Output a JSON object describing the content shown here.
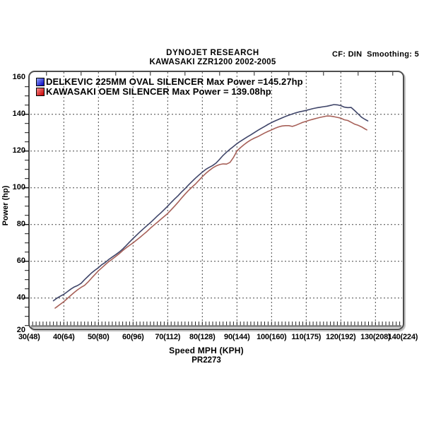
{
  "chart_data": {
    "type": "line",
    "title": "DYNOJET RESEARCH",
    "subtitle": "KAWASAKI ZZR1200 2002-2005",
    "correction_info": "CF: DIN  Smoothing: 5",
    "xlabel": "Speed MPH (KPH)",
    "ylabel": "Power (hp)",
    "reference_code": "PR2273",
    "xlim": [
      30,
      140
    ],
    "ylim": [
      20,
      160
    ],
    "grid": "dotted",
    "legend_position": "top-left",
    "x_ticks": [
      {
        "mph": 30,
        "label": "30(48)"
      },
      {
        "mph": 40,
        "label": "40(64)"
      },
      {
        "mph": 50,
        "label": "50(80)"
      },
      {
        "mph": 60,
        "label": "60(96)"
      },
      {
        "mph": 70,
        "label": "70(112)"
      },
      {
        "mph": 80,
        "label": "80(128)"
      },
      {
        "mph": 90,
        "label": "90(144)"
      },
      {
        "mph": 100,
        "label": "100(160)"
      },
      {
        "mph": 110,
        "label": "110(175)"
      },
      {
        "mph": 120,
        "label": "120(192)"
      },
      {
        "mph": 130,
        "label": "130(208)"
      },
      {
        "mph": 140,
        "label": "140(224)"
      }
    ],
    "y_ticks": [
      20,
      40,
      60,
      80,
      100,
      120,
      140,
      160
    ],
    "series": [
      {
        "name": "DELKEVIC 225MM OVAL SILENCER",
        "legend_label": "DELKEVIC 225MM OVAL SILENCER Max Power =145.27hp",
        "max_power_hp": 145.27,
        "color": "#3f4569",
        "swatch_colors": [
          "#8899f5",
          "#1515c8"
        ],
        "points": [
          [
            37,
            38.5
          ],
          [
            38,
            39.9
          ],
          [
            39,
            41
          ],
          [
            40,
            42
          ],
          [
            41,
            43.4
          ],
          [
            42,
            44.8
          ],
          [
            43,
            46
          ],
          [
            44,
            46.8
          ],
          [
            45,
            48
          ],
          [
            46,
            50
          ],
          [
            47,
            51.8
          ],
          [
            48,
            53.6
          ],
          [
            49,
            55.1
          ],
          [
            50,
            56.5
          ],
          [
            51,
            58.2
          ],
          [
            52,
            59.4
          ],
          [
            53,
            61
          ],
          [
            54,
            62.3
          ],
          [
            55,
            63.6
          ],
          [
            56,
            65
          ],
          [
            57,
            66.6
          ],
          [
            58,
            68.5
          ],
          [
            59,
            70.5
          ],
          [
            60,
            72.4
          ],
          [
            61,
            74.2
          ],
          [
            62,
            76
          ],
          [
            63,
            77.7
          ],
          [
            64,
            79.4
          ],
          [
            65,
            81
          ],
          [
            66,
            82.8
          ],
          [
            67,
            84.6
          ],
          [
            68,
            86.3
          ],
          [
            69,
            88.1
          ],
          [
            70,
            90
          ],
          [
            71,
            92
          ],
          [
            72,
            93.9
          ],
          [
            73,
            95.7
          ],
          [
            74,
            97.7
          ],
          [
            75,
            99.5
          ],
          [
            76,
            101.5
          ],
          [
            77,
            103.4
          ],
          [
            78,
            105.2
          ],
          [
            79,
            106.9
          ],
          [
            80,
            108.5
          ],
          [
            81,
            110
          ],
          [
            82,
            111.1
          ],
          [
            83,
            112.1
          ],
          [
            84,
            113.5
          ],
          [
            85,
            115.5
          ],
          [
            86,
            117.6
          ],
          [
            87,
            119.4
          ],
          [
            88,
            121
          ],
          [
            89,
            122.5
          ],
          [
            90,
            124
          ],
          [
            91,
            125.3
          ],
          [
            92,
            126.5
          ],
          [
            93,
            127.7
          ],
          [
            94,
            128.8
          ],
          [
            95,
            130
          ],
          [
            96,
            131.2
          ],
          [
            97,
            132.3
          ],
          [
            98,
            133.4
          ],
          [
            99,
            134.5
          ],
          [
            100,
            135.5
          ],
          [
            101,
            136.4
          ],
          [
            102,
            137.2
          ],
          [
            103,
            138
          ],
          [
            104,
            138.8
          ],
          [
            105,
            139.5
          ],
          [
            106,
            140.2
          ],
          [
            107,
            140.8
          ],
          [
            108,
            141.3
          ],
          [
            109,
            141.7
          ],
          [
            110,
            142.1
          ],
          [
            111,
            142.6
          ],
          [
            112,
            143.1
          ],
          [
            113,
            143.5
          ],
          [
            114,
            143.8
          ],
          [
            115,
            144.1
          ],
          [
            116,
            144.4
          ],
          [
            117,
            144.8
          ],
          [
            118,
            145.27
          ],
          [
            119,
            145.1
          ],
          [
            120,
            144.7
          ],
          [
            121,
            143.9
          ],
          [
            122,
            143.6
          ],
          [
            123,
            143.7
          ],
          [
            124,
            142
          ],
          [
            125,
            140.2
          ],
          [
            126,
            138.4
          ],
          [
            127,
            137.2
          ],
          [
            127.8,
            136.4
          ]
        ]
      },
      {
        "name": "KAWASAKI OEM SILENCER",
        "legend_label": "KAWASAKI OEM SILENCER Max Power = 139.08hp",
        "max_power_hp": 139.08,
        "color": "#a76058",
        "swatch_colors": [
          "#f58080",
          "#cc1111"
        ],
        "points": [
          [
            37.5,
            34.5
          ],
          [
            38,
            35.2
          ],
          [
            39,
            36.6
          ],
          [
            40,
            38
          ],
          [
            41,
            39.7
          ],
          [
            42,
            41.4
          ],
          [
            43,
            43
          ],
          [
            44,
            44.5
          ],
          [
            45,
            45.8
          ],
          [
            46,
            46.9
          ],
          [
            47,
            48.7
          ],
          [
            48,
            50.8
          ],
          [
            49,
            52.8
          ],
          [
            50,
            54.8
          ],
          [
            51,
            56.5
          ],
          [
            52,
            58.2
          ],
          [
            53,
            59.8
          ],
          [
            54,
            61.2
          ],
          [
            55,
            62.6
          ],
          [
            56,
            64.1
          ],
          [
            57,
            65.8
          ],
          [
            58,
            67.3
          ],
          [
            59,
            68.7
          ],
          [
            60,
            70
          ],
          [
            61,
            71.5
          ],
          [
            62,
            73
          ],
          [
            63,
            74.6
          ],
          [
            64,
            76.2
          ],
          [
            65,
            78
          ],
          [
            66,
            79.6
          ],
          [
            67,
            81.2
          ],
          [
            68,
            82.8
          ],
          [
            69,
            84.4
          ],
          [
            70,
            86
          ],
          [
            71,
            88
          ],
          [
            72,
            90
          ],
          [
            73,
            92.1
          ],
          [
            74,
            94.4
          ],
          [
            75,
            96.5
          ],
          [
            76,
            98.5
          ],
          [
            77,
            100.3
          ],
          [
            78,
            102
          ],
          [
            79,
            104
          ],
          [
            80,
            106
          ],
          [
            81,
            107.8
          ],
          [
            82,
            109.4
          ],
          [
            83,
            110.8
          ],
          [
            84,
            111.9
          ],
          [
            85,
            112.6
          ],
          [
            86,
            113
          ],
          [
            87,
            112.9
          ],
          [
            88,
            113.8
          ],
          [
            89,
            116.5
          ],
          [
            90,
            120
          ],
          [
            91,
            121.8
          ],
          [
            92,
            123.4
          ],
          [
            93,
            124.8
          ],
          [
            94,
            126
          ],
          [
            95,
            127
          ],
          [
            96,
            127.8
          ],
          [
            97,
            128.8
          ],
          [
            98,
            129.8
          ],
          [
            99,
            130.7
          ],
          [
            100,
            131.5
          ],
          [
            101,
            132.4
          ],
          [
            102,
            133.1
          ],
          [
            103,
            133.6
          ],
          [
            104,
            133.8
          ],
          [
            105,
            133.8
          ],
          [
            106,
            133.4
          ],
          [
            107,
            134
          ],
          [
            108,
            134.8
          ],
          [
            109,
            135.6
          ],
          [
            110,
            136.2
          ],
          [
            111,
            136.8
          ],
          [
            112,
            137.3
          ],
          [
            113,
            137.8
          ],
          [
            114,
            138.3
          ],
          [
            115,
            138.7
          ],
          [
            116,
            139.08
          ],
          [
            117,
            139
          ],
          [
            118,
            138.7
          ],
          [
            119,
            138.3
          ],
          [
            120,
            137.9
          ],
          [
            121,
            137
          ],
          [
            122,
            136.6
          ],
          [
            123,
            135.6
          ],
          [
            124,
            134.6
          ],
          [
            125,
            134
          ],
          [
            126,
            133.1
          ],
          [
            127,
            132
          ],
          [
            127.5,
            131.5
          ]
        ]
      }
    ]
  }
}
